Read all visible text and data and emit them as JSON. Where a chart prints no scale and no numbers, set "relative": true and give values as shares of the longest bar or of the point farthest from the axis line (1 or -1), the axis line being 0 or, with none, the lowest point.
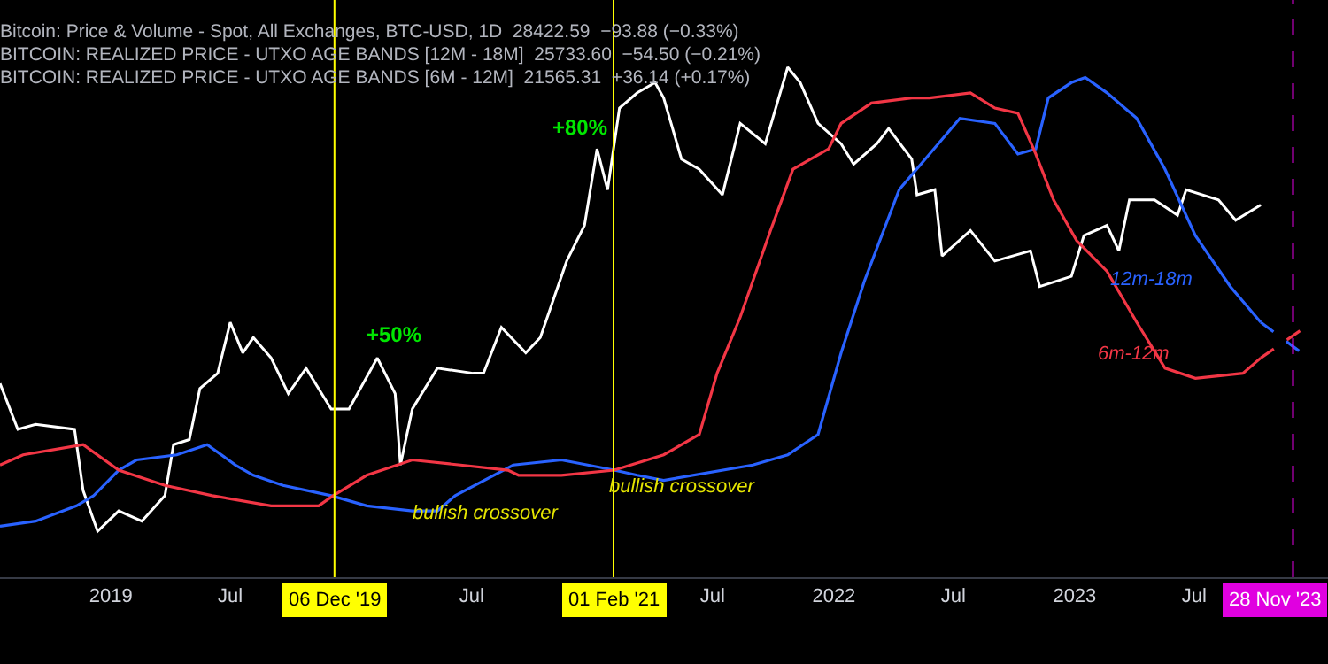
{
  "chart_data": {
    "type": "line",
    "relative": true,
    "tick_labels": "x",
    "grid": false,
    "legend": false,
    "xlim": [
      "2018-07-17",
      "2024-01-20"
    ],
    "xticks": [
      {
        "value": "2019-01-01",
        "label": "2019"
      },
      {
        "value": "2019-07-01",
        "label": "Jul"
      },
      {
        "value": "2020-07-01",
        "label": "Jul"
      },
      {
        "value": "2021-07-01",
        "label": "Jul"
      },
      {
        "value": "2022-01-01",
        "label": "2022"
      },
      {
        "value": "2022-07-01",
        "label": "Jul"
      },
      {
        "value": "2023-01-01",
        "label": "2023"
      },
      {
        "value": "2023-07-01",
        "label": "Jul"
      }
    ],
    "series": [
      {
        "color": "#ffffff",
        "x": [
          "2018-07-17",
          "2018-08-13",
          "2018-09-09",
          "2018-11-07",
          "2018-11-20",
          "2018-12-12",
          "2019-01-13",
          "2019-02-17",
          "2019-03-24",
          "2019-04-06",
          "2019-04-30",
          "2019-05-16",
          "2019-06-12",
          "2019-07-01",
          "2019-07-20",
          "2019-08-05",
          "2019-09-01",
          "2019-09-27",
          "2019-10-24",
          "2019-12-01",
          "2019-12-28",
          "2020-02-09",
          "2020-03-07",
          "2020-03-15",
          "2020-04-02",
          "2020-05-10",
          "2020-07-03",
          "2020-07-19",
          "2020-08-15",
          "2020-09-21",
          "2020-10-13",
          "2020-11-22",
          "2020-12-19",
          "2021-01-07",
          "2021-01-23",
          "2021-02-10",
          "2021-03-09",
          "2021-04-05",
          "2021-04-18",
          "2021-05-15",
          "2021-06-11",
          "2021-07-16",
          "2021-08-12",
          "2021-09-19",
          "2021-10-23",
          "2021-11-11",
          "2021-12-08",
          "2022-01-12",
          "2022-01-31",
          "2022-03-07",
          "2022-03-25",
          "2022-04-29",
          "2022-05-07",
          "2022-06-03",
          "2022-06-14",
          "2022-07-27",
          "2022-09-02",
          "2022-10-26",
          "2022-11-09",
          "2022-12-27",
          "2023-01-15",
          "2023-02-19",
          "2023-03-09",
          "2023-03-25",
          "2023-05-02",
          "2023-06-06",
          "2023-06-19",
          "2023-08-07",
          "2023-09-02",
          "2023-10-10"
        ],
        "values": [
          0.38,
          0.29,
          0.3,
          0.29,
          0.17,
          0.09,
          0.13,
          0.11,
          0.16,
          0.26,
          0.27,
          0.37,
          0.4,
          0.5,
          0.44,
          0.47,
          0.43,
          0.36,
          0.41,
          0.33,
          0.33,
          0.43,
          0.36,
          0.22,
          0.33,
          0.41,
          0.4,
          0.4,
          0.49,
          0.44,
          0.47,
          0.62,
          0.69,
          0.84,
          0.76,
          0.92,
          0.95,
          0.97,
          0.94,
          0.82,
          0.8,
          0.75,
          0.89,
          0.85,
          1,
          0.97,
          0.89,
          0.85,
          0.81,
          0.85,
          0.88,
          0.82,
          0.75,
          0.76,
          0.63,
          0.68,
          0.62,
          0.64,
          0.57,
          0.59,
          0.67,
          0.69,
          0.64,
          0.74,
          0.74,
          0.71,
          0.76,
          0.74,
          0.7,
          0.73
        ]
      },
      {
        "name": "12m-18m",
        "color": "#2962ff",
        "x": [
          "2018-07-17",
          "2018-09-09",
          "2018-11-10",
          "2018-12-06",
          "2019-01-13",
          "2019-02-09",
          "2019-04-11",
          "2019-05-27",
          "2019-07-09",
          "2019-08-05",
          "2019-09-19",
          "2019-12-01",
          "2020-01-24",
          "2020-04-02",
          "2020-05-10",
          "2020-06-06",
          "2020-09-02",
          "2020-11-14",
          "2021-02-02",
          "2021-03-09",
          "2021-04-18",
          "2021-08-31",
          "2021-10-23",
          "2021-12-08",
          "2022-01-12",
          "2022-02-16",
          "2022-04-10",
          "2022-05-26",
          "2022-07-11",
          "2022-09-02",
          "2022-10-07",
          "2022-11-03",
          "2022-11-22",
          "2022-12-27",
          "2023-01-17",
          "2023-02-19",
          "2023-04-05",
          "2023-05-18",
          "2023-07-03",
          "2023-08-25",
          "2023-10-10"
        ],
        "values": [
          0.1,
          0.11,
          0.14,
          0.16,
          0.21,
          0.23,
          0.24,
          0.26,
          0.22,
          0.2,
          0.18,
          0.16,
          0.14,
          0.13,
          0.13,
          0.16,
          0.22,
          0.23,
          0.21,
          0.2,
          0.19,
          0.22,
          0.24,
          0.28,
          0.44,
          0.58,
          0.76,
          0.83,
          0.9,
          0.89,
          0.83,
          0.84,
          0.94,
          0.97,
          0.98,
          0.95,
          0.9,
          0.8,
          0.67,
          0.57,
          0.5
        ]
      },
      {
        "name": "6m-12m",
        "color": "#f23645",
        "x": [
          "2018-07-17",
          "2018-08-21",
          "2018-11-20",
          "2019-01-13",
          "2019-03-24",
          "2019-06-04",
          "2019-09-01",
          "2019-11-12",
          "2019-12-04",
          "2020-01-24",
          "2020-04-02",
          "2020-06-14",
          "2020-08-25",
          "2020-09-10",
          "2020-11-14",
          "2021-02-02",
          "2021-04-18",
          "2021-06-11",
          "2021-07-08",
          "2021-08-12",
          "2021-09-27",
          "2021-10-31",
          "2021-12-24",
          "2022-01-12",
          "2022-02-27",
          "2022-04-29",
          "2022-05-26",
          "2022-07-27",
          "2022-09-02",
          "2022-10-07",
          "2022-11-03",
          "2022-11-30",
          "2023-01-04",
          "2023-02-19",
          "2023-04-05",
          "2023-05-18",
          "2023-07-03",
          "2023-09-13",
          "2023-10-10"
        ],
        "values": [
          0.22,
          0.24,
          0.26,
          0.21,
          0.18,
          0.16,
          0.14,
          0.14,
          0.16,
          0.2,
          0.23,
          0.22,
          0.21,
          0.2,
          0.2,
          0.21,
          0.24,
          0.28,
          0.4,
          0.51,
          0.68,
          0.8,
          0.84,
          0.89,
          0.93,
          0.94,
          0.94,
          0.95,
          0.92,
          0.91,
          0.83,
          0.74,
          0.66,
          0.6,
          0.5,
          0.41,
          0.39,
          0.4,
          0.43
        ]
      },
      {
        "color": "#2962ff",
        "line_style": "dashed",
        "x": [
          "2023-10-10",
          "2023-12-11"
        ],
        "values": [
          0.5,
          0.44
        ]
      },
      {
        "color": "#f23645",
        "line_style": "dashed",
        "x": [
          "2023-10-10",
          "2023-12-16"
        ],
        "values": [
          0.43,
          0.49
        ]
      }
    ],
    "ref_lines": [
      {
        "axis": "x",
        "value": "2019-12-06",
        "label": "06 Dec '19",
        "color": "#ffff00"
      },
      {
        "axis": "x",
        "value": "2021-02-01",
        "label": "01 Feb '21",
        "color": "#ffff00"
      },
      {
        "axis": "x",
        "value": "2023-11-28",
        "label": "28 Nov '23",
        "color": "#e000e0",
        "line_style": "dashed"
      }
    ],
    "annotations": [
      "Bitcoin: Price & Volume - Spot, All Exchanges, BTC-USD, 1D  28422.59  −93.88 (−0.33%)",
      "BITCOIN: REALIZED PRICE - UTXO AGE BANDS [12M - 18M]  25733.60  −54.50 (−0.21%)",
      "BITCOIN: REALIZED PRICE - UTXO AGE BANDS [6M - 12M]  21565.31  +36.14 (+0.17%)",
      "+50%",
      "+80%",
      "bullish crossover",
      "bullish crossover"
    ]
  }
}
